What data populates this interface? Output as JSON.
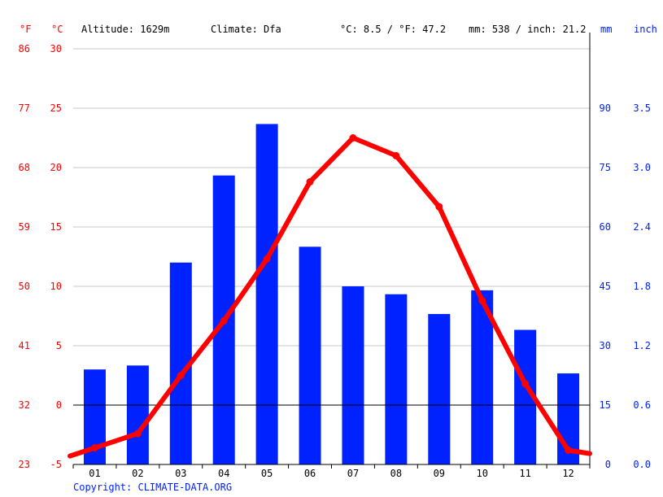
{
  "header": {
    "unit_f": "°F",
    "unit_c": "°C",
    "altitude": "Altitude: 1629m",
    "climate": "Climate: Dfa",
    "temp_avg": "°C: 8.5 / °F: 47.2",
    "precip_total": "mm: 538 / inch: 21.2",
    "unit_mm": "mm",
    "unit_inch": "inch"
  },
  "axes": {
    "celsius_ticks": [
      "30",
      "25",
      "20",
      "15",
      "10",
      "5",
      "0",
      "-5"
    ],
    "fahrenheit_ticks": [
      "86",
      "77",
      "68",
      "59",
      "50",
      "41",
      "32",
      "23"
    ],
    "mm_ticks": [
      "90",
      "75",
      "60",
      "45",
      "30",
      "15",
      "0"
    ],
    "inch_ticks": [
      "3.5",
      "3.0",
      "2.4",
      "1.8",
      "1.2",
      "0.6",
      "0.0"
    ]
  },
  "copyright": "Copyright: CLIMATE-DATA.ORG",
  "colors": {
    "temperature": "#ff0000",
    "precipitation": "#0022ff",
    "grid": "#c8c8c8"
  },
  "chart_data": {
    "type": "bar",
    "categories": [
      "01",
      "02",
      "03",
      "04",
      "05",
      "06",
      "07",
      "08",
      "09",
      "10",
      "11",
      "12"
    ],
    "series": [
      {
        "type": "bar",
        "axis": "mm",
        "values": [
          24,
          25,
          51,
          73,
          86,
          55,
          45,
          43,
          38,
          44,
          34,
          23
        ]
      },
      {
        "type": "line",
        "axis": "°C",
        "values": [
          -3.6,
          -2.4,
          2.5,
          7.1,
          12.3,
          18.8,
          22.5,
          21.0,
          16.7,
          8.8,
          1.8,
          -3.8
        ]
      }
    ],
    "ylim_celsius": [
      -5,
      30
    ],
    "ylim_mm": [
      0,
      105
    ],
    "grid": true
  }
}
